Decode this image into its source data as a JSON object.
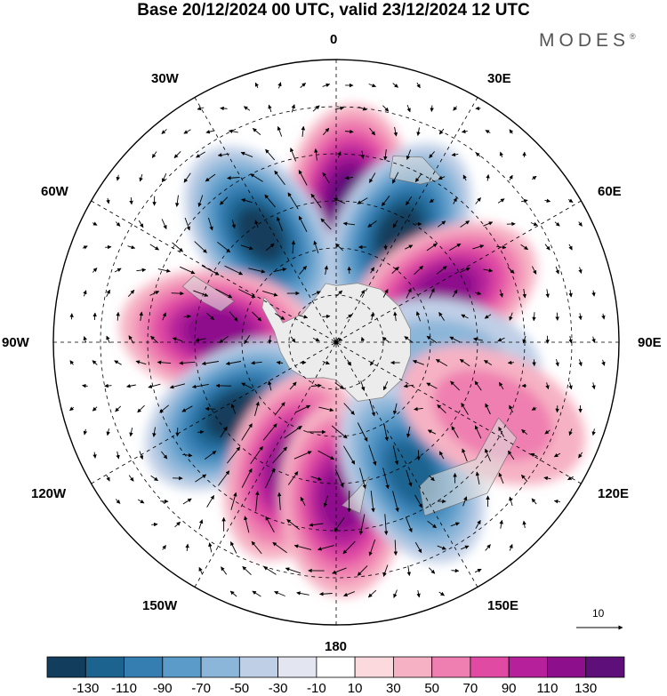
{
  "title": "Base 20/12/2024 00 UTC, valid 23/12/2024 12 UTC",
  "brand": "MODES",
  "brand_mark": "®",
  "longitude_labels": {
    "n0": "0",
    "n30e": "30E",
    "n60e": "60E",
    "n90e": "90E",
    "n120e": "120E",
    "n150e": "150E",
    "n180": "180",
    "n150w": "150W",
    "n120w": "120W",
    "n90w": "90W",
    "n60w": "60W",
    "n30w": "30W"
  },
  "reference_vector": "10",
  "colorbar": {
    "labels": [
      "-130",
      "-110",
      "-90",
      "-70",
      "-50",
      "-30",
      "-10",
      "10",
      "30",
      "50",
      "70",
      "90",
      "110",
      "130"
    ],
    "colors": [
      "#123d5c",
      "#1d6390",
      "#347eb2",
      "#5a9bc9",
      "#8cb6d9",
      "#bfcfe6",
      "#e3e5f1",
      "#ffffff",
      "#fbd9dc",
      "#f6b2c4",
      "#ef7fb0",
      "#e04aa3",
      "#b6209a",
      "#8d0f8c",
      "#5e0f79"
    ]
  },
  "chart_data": {
    "type": "polar-stereographic anomaly map with wind vectors",
    "projection": "South polar stereographic",
    "field": "geopotential height anomaly with wind vectors",
    "anomaly_centers": [
      {
        "lon_deg": 5,
        "lat_deg": -45,
        "sign": "positive",
        "peak": 130
      },
      {
        "lon_deg": -35,
        "lat_deg": -48,
        "sign": "negative",
        "peak": -130
      },
      {
        "lon_deg": 30,
        "lat_deg": -50,
        "sign": "negative",
        "peak": -130
      },
      {
        "lon_deg": 65,
        "lat_deg": -52,
        "sign": "positive",
        "peak": 110
      },
      {
        "lon_deg": 100,
        "lat_deg": -55,
        "sign": "negative",
        "peak": -50
      },
      {
        "lon_deg": -85,
        "lat_deg": -52,
        "sign": "positive",
        "peak": 110
      },
      {
        "lon_deg": -125,
        "lat_deg": -50,
        "sign": "negative",
        "peak": -130
      },
      {
        "lon_deg": -160,
        "lat_deg": -48,
        "sign": "positive",
        "peak": 110
      },
      {
        "lon_deg": 178,
        "lat_deg": -40,
        "sign": "positive",
        "peak": 110
      },
      {
        "lon_deg": 150,
        "lat_deg": -42,
        "sign": "negative",
        "peak": -110
      },
      {
        "lon_deg": 115,
        "lat_deg": -35,
        "sign": "positive",
        "peak": 50
      }
    ]
  }
}
